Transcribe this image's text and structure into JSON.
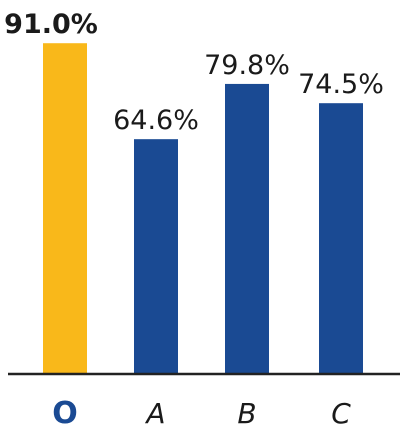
{
  "chart_data": {
    "type": "bar",
    "categories": [
      "O",
      "A",
      "B",
      "C"
    ],
    "values": [
      91.0,
      64.6,
      79.8,
      74.5
    ],
    "value_labels": [
      "91.0%",
      "64.6%",
      "79.8%",
      "74.5%"
    ],
    "highlight_index": 0,
    "ylim": [
      0,
      100
    ],
    "title": "",
    "xlabel": "",
    "ylabel": "",
    "grid": false,
    "legend": "none",
    "colors": {
      "highlight": "#F9B81A",
      "bar": "#1A4A93",
      "highlight_label": "#1A4A93",
      "axis": "#222222"
    }
  }
}
